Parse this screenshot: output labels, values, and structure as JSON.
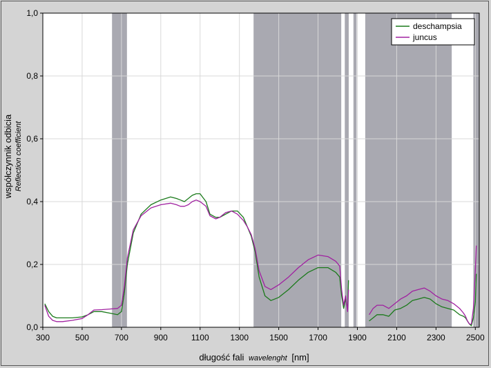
{
  "chart_data": {
    "type": "line",
    "title": "",
    "xlabel_main": "długość fali",
    "xlabel_italic": "wavelenght",
    "xlabel_unit": "[nm]",
    "ylabel_main": "współczynnik odbicia",
    "ylabel_italic": "Reflection coefficient",
    "xlim": [
      300,
      2520
    ],
    "ylim": [
      0,
      1.0
    ],
    "x_ticks": [
      "300",
      "500",
      "700",
      "900",
      "1100",
      "1300",
      "1500",
      "1700",
      "1900",
      "2100",
      "2300",
      "2500"
    ],
    "x_tick_values": [
      300,
      500,
      700,
      900,
      1100,
      1300,
      1500,
      1700,
      1900,
      2100,
      2300,
      2500
    ],
    "y_ticks": [
      "0,0",
      "0,2",
      "0,4",
      "0,6",
      "0,8",
      "1,0"
    ],
    "y_tick_values": [
      0,
      0.2,
      0.4,
      0.6,
      0.8,
      1.0
    ],
    "grid": true,
    "legend_position": "top-right",
    "shaded_bands": [
      [
        652,
        728
      ],
      [
        1372,
        1818
      ],
      [
        1836,
        1856
      ],
      [
        1880,
        1896
      ],
      [
        1940,
        2380
      ],
      [
        2490,
        2520
      ]
    ],
    "series": [
      {
        "name": "deschampsia",
        "color": "#1a7a1a",
        "x": [
          310,
          330,
          350,
          370,
          400,
          450,
          500,
          530,
          560,
          600,
          640,
          680,
          700,
          715,
          730,
          760,
          800,
          850,
          900,
          950,
          980,
          1000,
          1020,
          1040,
          1060,
          1080,
          1100,
          1130,
          1150,
          1180,
          1200,
          1230,
          1260,
          1290,
          1320,
          1340,
          1360,
          1380,
          1400,
          1430,
          1460,
          1500,
          1550,
          1600,
          1650,
          1700,
          1750,
          1790,
          1810,
          1820,
          1830,
          1840,
          1850,
          1855
        ],
        "values": [
          0.075,
          0.05,
          0.035,
          0.03,
          0.03,
          0.03,
          0.033,
          0.04,
          0.05,
          0.05,
          0.045,
          0.04,
          0.05,
          0.11,
          0.2,
          0.3,
          0.36,
          0.39,
          0.405,
          0.415,
          0.41,
          0.405,
          0.4,
          0.41,
          0.42,
          0.425,
          0.425,
          0.4,
          0.36,
          0.35,
          0.35,
          0.36,
          0.37,
          0.37,
          0.35,
          0.32,
          0.29,
          0.24,
          0.16,
          0.1,
          0.085,
          0.095,
          0.12,
          0.15,
          0.175,
          0.19,
          0.19,
          0.175,
          0.16,
          0.1,
          0.06,
          0.09,
          0.06,
          0.15
        ]
      },
      {
        "name": "juncus",
        "color": "#a020a0",
        "x": [
          310,
          330,
          350,
          370,
          400,
          450,
          500,
          530,
          560,
          600,
          640,
          680,
          700,
          715,
          730,
          760,
          800,
          850,
          900,
          950,
          980,
          1000,
          1020,
          1040,
          1060,
          1080,
          1100,
          1130,
          1150,
          1180,
          1200,
          1230,
          1260,
          1290,
          1320,
          1340,
          1360,
          1380,
          1400,
          1430,
          1460,
          1500,
          1550,
          1600,
          1650,
          1700,
          1750,
          1790,
          1810,
          1820,
          1830,
          1840,
          1850,
          1855
        ],
        "values": [
          0.07,
          0.035,
          0.022,
          0.018,
          0.018,
          0.022,
          0.028,
          0.04,
          0.055,
          0.056,
          0.058,
          0.06,
          0.07,
          0.13,
          0.22,
          0.31,
          0.355,
          0.38,
          0.39,
          0.395,
          0.39,
          0.385,
          0.385,
          0.39,
          0.4,
          0.405,
          0.4,
          0.385,
          0.355,
          0.345,
          0.35,
          0.365,
          0.37,
          0.36,
          0.34,
          0.32,
          0.295,
          0.25,
          0.18,
          0.13,
          0.12,
          0.135,
          0.16,
          0.19,
          0.215,
          0.23,
          0.225,
          0.21,
          0.195,
          0.12,
          0.07,
          0.1,
          0.05,
          0.12
        ]
      },
      {
        "name": "deschampsia",
        "color": "#1a7a1a",
        "x": [
          1960,
          1980,
          2000,
          2030,
          2060,
          2090,
          2120,
          2150,
          2180,
          2210,
          2240,
          2270,
          2300,
          2330,
          2360,
          2390,
          2420,
          2440,
          2450,
          2460,
          2470,
          2480,
          2490,
          2500,
          2505
        ],
        "values": [
          0.02,
          0.03,
          0.04,
          0.04,
          0.035,
          0.055,
          0.06,
          0.07,
          0.085,
          0.09,
          0.095,
          0.09,
          0.075,
          0.065,
          0.06,
          0.055,
          0.04,
          0.035,
          0.03,
          0.02,
          0.01,
          0.005,
          0.03,
          0.08,
          0.17
        ]
      },
      {
        "name": "juncus",
        "color": "#a020a0",
        "x": [
          1960,
          1980,
          2000,
          2030,
          2060,
          2090,
          2120,
          2150,
          2180,
          2210,
          2240,
          2270,
          2300,
          2330,
          2360,
          2390,
          2420,
          2440,
          2450,
          2460,
          2470,
          2480,
          2490,
          2500,
          2505
        ],
        "values": [
          0.04,
          0.06,
          0.07,
          0.07,
          0.06,
          0.075,
          0.09,
          0.1,
          0.115,
          0.12,
          0.125,
          0.115,
          0.1,
          0.09,
          0.085,
          0.075,
          0.06,
          0.045,
          0.035,
          0.02,
          0.01,
          0.01,
          0.06,
          0.18,
          0.26
        ]
      }
    ]
  }
}
